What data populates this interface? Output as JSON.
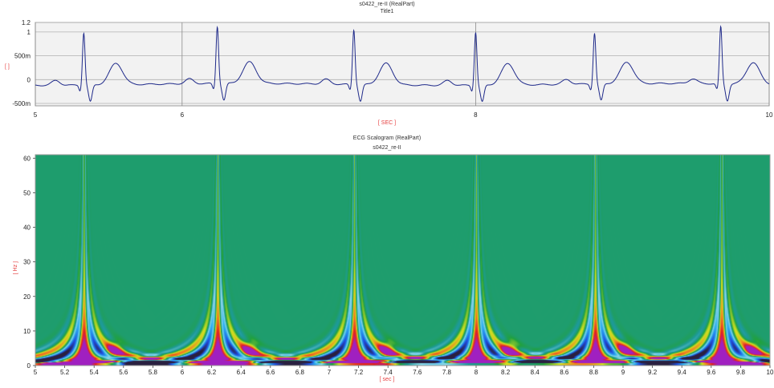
{
  "chart_data": [
    {
      "type": "line",
      "title": "s0422_re-II (RealPart)",
      "subtitle": "Title1",
      "xlabel": "[ SEC ]",
      "ylabel": "[ ]",
      "xlim": [
        5,
        10
      ],
      "ylim": [
        -0.55,
        1.2
      ],
      "x_ticks": [
        {
          "value": 5,
          "label": "5"
        },
        {
          "value": 6,
          "label": "6"
        },
        {
          "value": 8,
          "label": "8"
        },
        {
          "value": 10,
          "label": "10"
        }
      ],
      "y_ticks": [
        {
          "value": 1.2,
          "label": "1.2"
        },
        {
          "value": 1,
          "label": "1"
        },
        {
          "value": 0.5,
          "label": "500m"
        },
        {
          "value": 0,
          "label": "0"
        },
        {
          "value": -0.5,
          "label": "-500m"
        }
      ],
      "grid": true,
      "series": [
        {
          "color": "#1f2a8a",
          "r_peak_times": [
            5.33,
            6.24,
            7.17,
            8.0,
            8.81,
            9.67
          ],
          "r_peak_amplitudes": [
            1.0,
            1.1,
            1.05,
            1.02,
            0.97,
            1.1
          ],
          "baseline": -0.1,
          "t_wave_amplitude": 0.35,
          "p_wave_amplitude": 0.1
        }
      ]
    },
    {
      "type": "heatmap",
      "title": "ECG Scalogram (RealPart)",
      "subtitle": "s0422_re-II",
      "xlabel": "[ sec ]",
      "ylabel": "[ Hz ]",
      "xlim": [
        5,
        10
      ],
      "ylim": [
        0,
        61
      ],
      "x_ticks": [
        "5",
        "5.2",
        "5.4",
        "5.6",
        "5.8",
        "6",
        "6.2",
        "6.4",
        "6.6",
        "6.8",
        "7",
        "7.2",
        "7.4",
        "7.6",
        "7.8",
        "8",
        "8.2",
        "8.4",
        "8.6",
        "8.8",
        "9",
        "9.2",
        "9.4",
        "9.6",
        "9.8",
        "10"
      ],
      "y_ticks": [
        "0",
        "10",
        "20",
        "30",
        "40",
        "50",
        "60"
      ],
      "colormap": [
        "#2a2040",
        "#2050e0",
        "#30b0f0",
        "#8ad8e8",
        "#1d9a9a",
        "#20a040",
        "#d0e020",
        "#f08020",
        "#e02020",
        "#a020c0"
      ],
      "background_color": "#1d9a9a",
      "event_times": [
        5.33,
        6.24,
        7.17,
        8.0,
        8.81,
        9.67
      ],
      "t_wave_times": [
        5.53,
        6.45,
        7.38,
        8.22,
        9.0,
        9.87
      ]
    }
  ]
}
